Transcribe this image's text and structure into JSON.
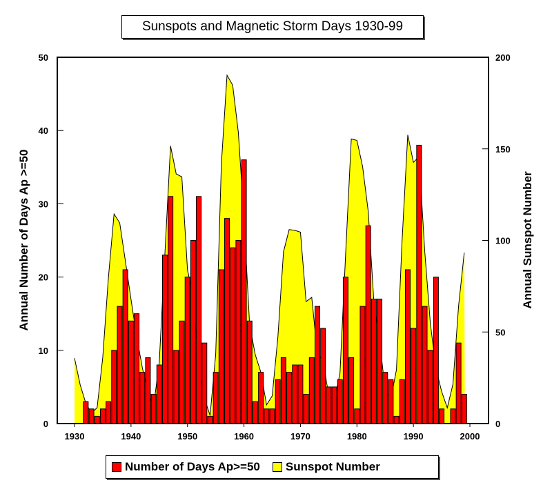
{
  "chart_data": {
    "type": "bar",
    "title": "Sunspots and Magnetic Storm Days 1930-99",
    "ylabel": "Annual Number of Days Ap >=50",
    "y2label": "Annual Sunspot Number",
    "xlim": [
      1927,
      2003
    ],
    "ylim": [
      0,
      50
    ],
    "y2lim": [
      0,
      200
    ],
    "xticks": [
      1930,
      1940,
      1950,
      1960,
      1970,
      1980,
      1990,
      2000
    ],
    "yticks": [
      0,
      10,
      20,
      30,
      40,
      50
    ],
    "y2ticks": [
      0,
      50,
      100,
      150,
      200
    ],
    "grid": false,
    "legend": "bottom",
    "colors": {
      "bars": "#ff0000",
      "area": "#ffff00"
    },
    "series": [
      {
        "name": "Number of Days Ap>=50",
        "type": "bar",
        "axis": "left",
        "x": [
          1932,
          1933,
          1934,
          1935,
          1936,
          1937,
          1938,
          1939,
          1940,
          1941,
          1942,
          1943,
          1944,
          1945,
          1946,
          1947,
          1948,
          1949,
          1950,
          1951,
          1952,
          1953,
          1954,
          1955,
          1956,
          1957,
          1958,
          1959,
          1960,
          1961,
          1962,
          1963,
          1964,
          1965,
          1966,
          1967,
          1968,
          1969,
          1970,
          1971,
          1972,
          1973,
          1974,
          1975,
          1976,
          1977,
          1978,
          1979,
          1980,
          1981,
          1982,
          1983,
          1984,
          1985,
          1986,
          1987,
          1988,
          1989,
          1990,
          1991,
          1992,
          1993,
          1994,
          1995,
          1996,
          1997,
          1998,
          1999
        ],
        "values": [
          3,
          2,
          1,
          2,
          3,
          10,
          16,
          21,
          14,
          15,
          7,
          9,
          4,
          8,
          23,
          31,
          10,
          14,
          20,
          25,
          31,
          11,
          1,
          7,
          21,
          28,
          24,
          25,
          36,
          14,
          3,
          7,
          2,
          2,
          6,
          9,
          7,
          8,
          8,
          4,
          9,
          16,
          13,
          5,
          5,
          6,
          20,
          9,
          2,
          16,
          27,
          17,
          17,
          7,
          6,
          1,
          6,
          21,
          13,
          38,
          16,
          10,
          20,
          2,
          0,
          2,
          11,
          4
        ]
      },
      {
        "name": "Sunspot Number",
        "type": "area",
        "axis": "right",
        "x": [
          1930,
          1931,
          1932,
          1933,
          1934,
          1935,
          1936,
          1937,
          1938,
          1939,
          1940,
          1941,
          1942,
          1943,
          1944,
          1945,
          1946,
          1947,
          1948,
          1949,
          1950,
          1951,
          1952,
          1953,
          1954,
          1955,
          1956,
          1957,
          1958,
          1959,
          1960,
          1961,
          1962,
          1963,
          1964,
          1965,
          1966,
          1967,
          1968,
          1969,
          1970,
          1971,
          1972,
          1973,
          1974,
          1975,
          1976,
          1977,
          1978,
          1979,
          1980,
          1981,
          1982,
          1983,
          1984,
          1985,
          1986,
          1987,
          1988,
          1989,
          1990,
          1991,
          1992,
          1993,
          1994,
          1995,
          1996,
          1997,
          1998,
          1999
        ],
        "values": [
          35.7,
          21.2,
          11.1,
          5.7,
          8.7,
          36.1,
          79.7,
          114.4,
          109.6,
          88.8,
          67.8,
          47.5,
          30.6,
          16.3,
          9.6,
          33.2,
          92.6,
          151.6,
          136.3,
          134.7,
          83.9,
          69.4,
          31.5,
          13.9,
          4.4,
          38.0,
          141.7,
          190.2,
          184.8,
          159.0,
          112.3,
          53.9,
          37.6,
          27.9,
          10.2,
          15.1,
          47.0,
          93.8,
          105.9,
          105.5,
          104.5,
          66.6,
          68.9,
          38.0,
          34.5,
          15.5,
          12.6,
          27.5,
          92.5,
          155.4,
          154.6,
          140.4,
          115.9,
          66.6,
          45.9,
          17.9,
          13.4,
          29.4,
          100.2,
          157.6,
          142.6,
          145.7,
          94.3,
          54.6,
          29.9,
          17.5,
          8.6,
          21.5,
          64.3,
          93.3
        ]
      }
    ]
  }
}
